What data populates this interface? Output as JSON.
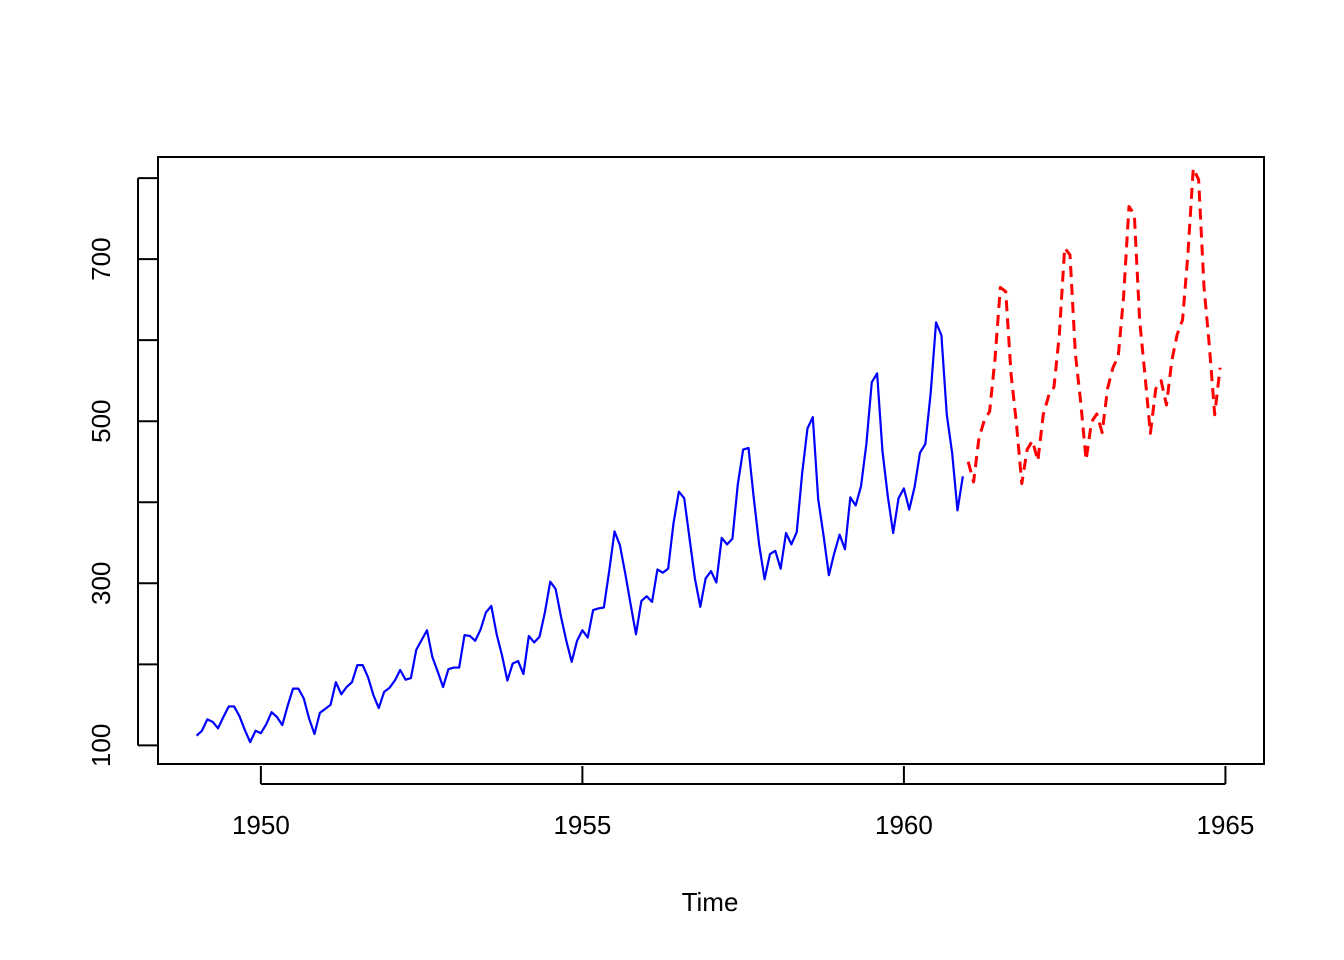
{
  "chart_data": {
    "type": "line",
    "title": "",
    "xlabel": "Time",
    "ylabel": "",
    "xlim": [
      1948.4,
      1965.6
    ],
    "ylim": [
      77,
      826
    ],
    "x_ticks": [
      1950,
      1955,
      1960,
      1965
    ],
    "x_tick_labels": [
      "1950",
      "1955",
      "1960",
      "1965"
    ],
    "y_ticks": [
      100,
      200,
      300,
      400,
      500,
      600,
      700,
      800
    ],
    "y_tick_labels": [
      "100",
      "300",
      "500",
      "700"
    ],
    "y_tick_label_values": [
      100,
      300,
      500,
      700
    ],
    "grid": false,
    "series": [
      {
        "style": "solid",
        "color": "#0000ff",
        "start": 1949.0,
        "frequency": 12,
        "values": [
          112,
          118,
          132,
          129,
          121,
          135,
          148,
          148,
          136,
          119,
          104,
          118,
          115,
          126,
          141,
          135,
          125,
          149,
          170,
          170,
          158,
          133,
          114,
          140,
          145,
          150,
          178,
          163,
          172,
          178,
          199,
          199,
          184,
          162,
          146,
          166,
          171,
          180,
          193,
          181,
          183,
          218,
          230,
          242,
          209,
          191,
          172,
          194,
          196,
          196,
          236,
          235,
          229,
          243,
          264,
          272,
          237,
          211,
          180,
          201,
          204,
          188,
          235,
          227,
          234,
          264,
          302,
          293,
          259,
          229,
          203,
          229,
          242,
          233,
          267,
          269,
          270,
          315,
          364,
          347,
          312,
          274,
          237,
          278,
          284,
          277,
          317,
          313,
          318,
          374,
          413,
          405,
          355,
          306,
          271,
          306,
          315,
          301,
          356,
          348,
          355,
          422,
          465,
          467,
          404,
          347,
          305,
          336,
          340,
          318,
          362,
          348,
          363,
          435,
          491,
          505,
          404,
          359,
          310,
          337,
          360,
          342,
          406,
          396,
          420,
          472,
          548,
          559,
          463,
          407,
          362,
          405,
          417,
          391,
          419,
          461,
          472,
          535,
          622,
          606,
          508,
          461,
          390,
          432
        ]
      },
      {
        "style": "dashed",
        "color": "#ff0000",
        "start": 1961.0,
        "frequency": 12,
        "values": [
          450,
          425,
          479,
          501,
          512,
          577,
          665,
          660,
          558,
          497,
          423,
          465,
          476,
          451,
          508,
          531,
          542,
          606,
          714,
          705,
          583,
          523,
          452,
          499,
          509,
          486,
          540,
          566,
          580,
          654,
          765,
          755,
          624,
          556,
          485,
          540,
          550,
          520,
          575,
          607,
          625,
          706,
          812,
          798,
          666,
          593,
          508,
          566
        ]
      }
    ]
  }
}
